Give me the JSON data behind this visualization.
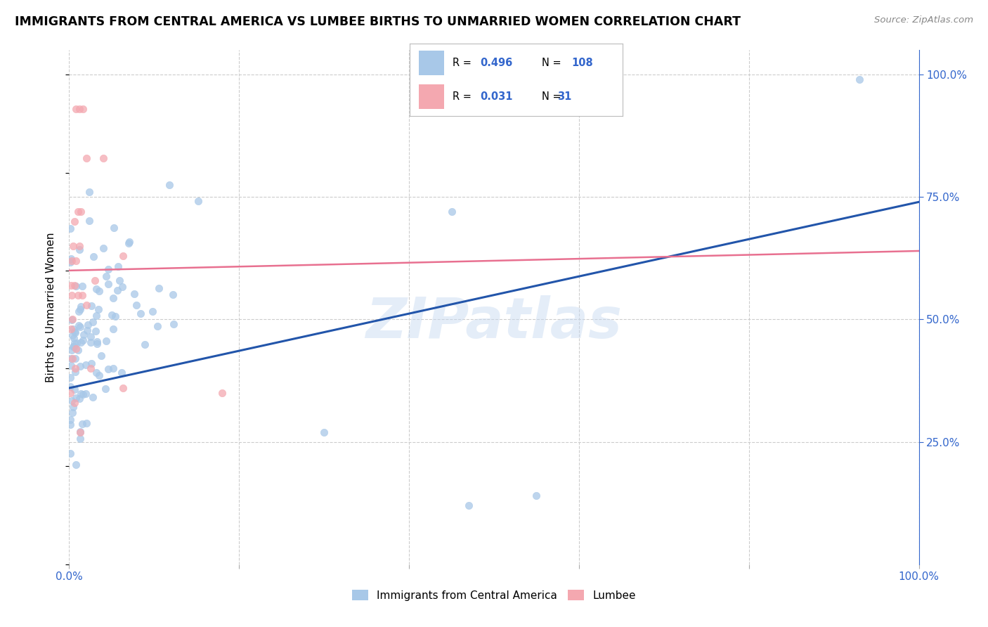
{
  "title": "IMMIGRANTS FROM CENTRAL AMERICA VS LUMBEE BIRTHS TO UNMARRIED WOMEN CORRELATION CHART",
  "source": "Source: ZipAtlas.com",
  "ylabel": "Births to Unmarried Women",
  "watermark": "ZIPatlas",
  "legend_R_blue": "0.496",
  "legend_N_blue": "108",
  "legend_R_pink": "0.031",
  "legend_N_pink": "31",
  "blue_color": "#a8c8e8",
  "pink_color": "#f4a8b0",
  "blue_line_color": "#2255aa",
  "pink_line_color": "#e87090",
  "grid_color": "#cccccc",
  "text_blue": "#3366cc",
  "blue_line_slope": 0.38,
  "blue_line_intercept": 0.36,
  "pink_line_slope": 0.04,
  "pink_line_intercept": 0.6,
  "ylim_min": 0.0,
  "ylim_max": 1.05,
  "xlim_min": 0.0,
  "xlim_max": 1.0
}
